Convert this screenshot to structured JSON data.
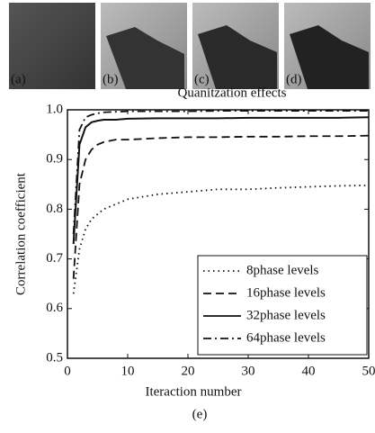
{
  "panels": [
    "(a)",
    "(b)",
    "(c)",
    "(d)"
  ],
  "caption": "(e)",
  "chart_data": {
    "type": "line",
    "title": "Quanitzation effects",
    "x_label": "Iteraction number",
    "y_label": "Correlation coefficient",
    "x": [
      1,
      2,
      3,
      4,
      5,
      6,
      8,
      10,
      15,
      20,
      25,
      30,
      35,
      40,
      45,
      50
    ],
    "xlim": [
      0,
      50
    ],
    "xticks": [
      0,
      10,
      20,
      30,
      40,
      50
    ],
    "ylim": [
      0.5,
      1.0
    ],
    "yticks": [
      0.5,
      0.6,
      0.7,
      0.8,
      0.9,
      {
        "value": 1,
        "label": "1.0"
      }
    ],
    "legend": "lower right",
    "series": [
      {
        "name": "8phase levels",
        "color": "#111",
        "dash": "dotted",
        "values": [
          0.63,
          0.72,
          0.76,
          0.78,
          0.79,
          0.8,
          0.81,
          0.82,
          0.83,
          0.835,
          0.84,
          0.84,
          0.843,
          0.845,
          0.847,
          0.848
        ]
      },
      {
        "name": "16phase levels",
        "color": "#111",
        "dash": "dashed",
        "values": [
          0.66,
          0.85,
          0.9,
          0.92,
          0.93,
          0.935,
          0.94,
          0.94,
          0.943,
          0.945,
          0.945,
          0.946,
          0.946,
          0.947,
          0.947,
          0.948
        ]
      },
      {
        "name": "32phase levels",
        "color": "#111",
        "dash": "solid",
        "values": [
          0.73,
          0.93,
          0.965,
          0.975,
          0.978,
          0.98,
          0.98,
          0.982,
          0.983,
          0.983,
          0.983,
          0.984,
          0.984,
          0.984,
          0.984,
          0.985
        ]
      },
      {
        "name": "64phase levels",
        "color": "#111",
        "dash": "dashdot",
        "values": [
          0.75,
          0.96,
          0.985,
          0.99,
          0.993,
          0.995,
          0.996,
          0.997,
          0.997,
          0.997,
          0.998,
          0.998,
          0.998,
          0.998,
          0.998,
          0.998
        ]
      }
    ]
  }
}
